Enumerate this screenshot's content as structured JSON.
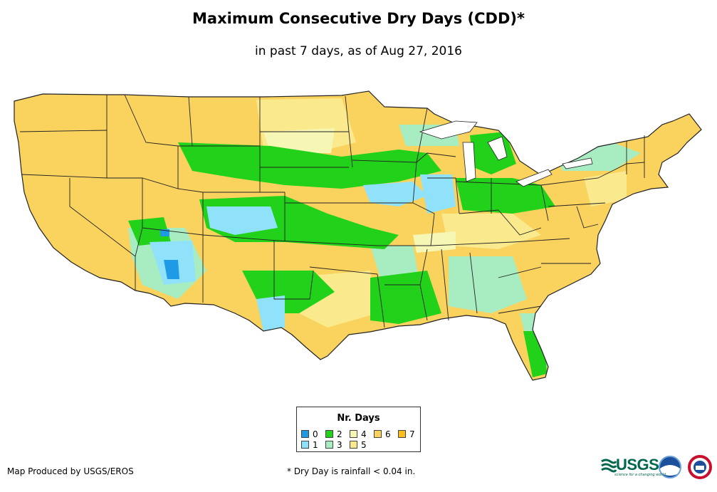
{
  "title": "Maximum Consecutive Dry Days (CDD)*",
  "subtitle": "in past 7 days, as of Aug 27, 2016",
  "legend": {
    "title": "Nr. Days",
    "items": [
      {
        "label": "0",
        "color": "#1f9be6"
      },
      {
        "label": "1",
        "color": "#8fe2fa"
      },
      {
        "label": "2",
        "color": "#22d11a"
      },
      {
        "label": "3",
        "color": "#a8edc2"
      },
      {
        "label": "4",
        "color": "#f7f7b5"
      },
      {
        "label": "5",
        "color": "#fae98d"
      },
      {
        "label": "6",
        "color": "#fad25e"
      },
      {
        "label": "7",
        "color": "#f9be1e"
      }
    ]
  },
  "footer": {
    "producer": "Map Produced by USGS/EROS",
    "note": "* Dry Day is rainfall < 0.04 in."
  },
  "logos": {
    "usgs": "USGS",
    "usgs_tagline": "science for a changing world",
    "noaa": "NOAA",
    "nws": "National Weather Service"
  }
}
